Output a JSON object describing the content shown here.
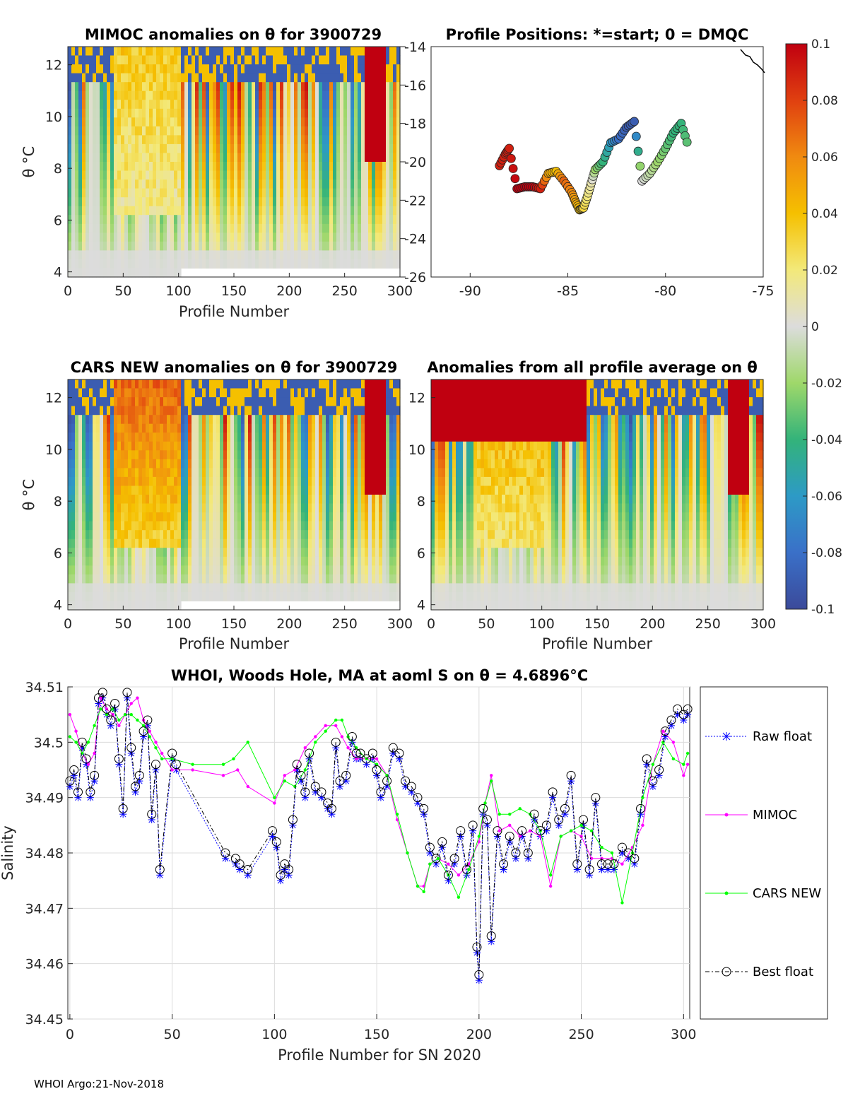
{
  "footer": "WHOI Argo:21-Nov-2018",
  "panels": {
    "mimoc": {
      "title": "MIMOC anomalies on θ  for 3900729",
      "xlabel": "Profile Number",
      "ylabel": "θ °C",
      "xticks": [
        "0",
        "50",
        "100",
        "150",
        "200",
        "250",
        "300"
      ],
      "yticks": [
        "4",
        "6",
        "8",
        "10",
        "12"
      ],
      "right_yticks": [
        "-14",
        "-16",
        "-18",
        "-20",
        "-22",
        "-24",
        "-26"
      ]
    },
    "positions": {
      "title": "Profile Positions: *=start; 0 = DMQC",
      "xticks": [
        "-90",
        "-85",
        "-80",
        "-75"
      ]
    },
    "cars": {
      "title": "CARS NEW anomalies on θ for 3900729",
      "xlabel": "Profile Number",
      "ylabel": "θ °C",
      "xticks": [
        "0",
        "50",
        "100",
        "150",
        "200",
        "250",
        "300"
      ],
      "yticks": [
        "4",
        "6",
        "8",
        "10",
        "12"
      ]
    },
    "avg": {
      "title": "Anomalies from all profile average on θ",
      "xlabel": "Profile Number",
      "xticks": [
        "0",
        "50",
        "100",
        "150",
        "200",
        "250",
        "300"
      ],
      "yticks": [
        "4",
        "6",
        "8",
        "10",
        "12"
      ]
    },
    "colorbar": {
      "ticks": [
        "0.1",
        "0.08",
        "0.06",
        "0.04",
        "0.02",
        "0",
        "-0.02",
        "-0.04",
        "-0.06",
        "-0.08",
        "-0.1"
      ]
    }
  },
  "chart_data": [
    {
      "type": "heatmap",
      "title": "MIMOC anomalies on θ  for 3900729",
      "xlabel": "Profile Number",
      "ylabel": "θ °C",
      "xlim": [
        0,
        300
      ],
      "ylim": [
        3.8,
        12.7
      ],
      "clim": [
        -0.1,
        0.1
      ]
    },
    {
      "type": "scatter",
      "title": "Profile Positions: *=start; 0 = DMQC",
      "xlim": [
        -92,
        -75
      ],
      "ylim": [
        -26,
        -14
      ],
      "x": [
        -88.5,
        -88.2,
        -88.0,
        -87.6,
        -87.2,
        -86.8,
        -86.4,
        -86.0,
        -85.6,
        -85.2,
        -84.8,
        -84.6,
        -84.4,
        -84.2,
        -84.0,
        -83.8,
        -83.6,
        -83.2,
        -82.8,
        -82.4,
        -82.0,
        -81.6,
        -81.2,
        -80.8,
        -80.4,
        -80.0,
        -79.6,
        -79.2,
        -78.8
      ],
      "y": [
        -20.2,
        -19.6,
        -19.3,
        -21.4,
        -21.3,
        -21.3,
        -21.4,
        -20.6,
        -20.5,
        -21.0,
        -21.6,
        -22.1,
        -22.5,
        -22.4,
        -21.8,
        -21.1,
        -20.4,
        -20.0,
        -19.0,
        -18.8,
        -18.2,
        -17.9,
        -21.0,
        -20.6,
        -20.0,
        -19.3,
        -18.5,
        -18.0,
        -19.3
      ],
      "c": [
        0.09,
        0.09,
        0.09,
        0.1,
        0.1,
        0.1,
        0.09,
        0.05,
        0.04,
        0.07,
        0.06,
        0.05,
        0.04,
        0.03,
        0.02,
        0.01,
        -0.02,
        -0.04,
        -0.06,
        -0.08,
        -0.09,
        -0.09,
        0.0,
        -0.01,
        -0.02,
        -0.03,
        -0.04,
        -0.04,
        -0.03
      ]
    },
    {
      "type": "heatmap",
      "title": "CARS NEW anomalies on θ for 3900729",
      "xlabel": "Profile Number",
      "ylabel": "θ °C",
      "xlim": [
        0,
        300
      ],
      "ylim": [
        3.8,
        12.7
      ],
      "clim": [
        -0.1,
        0.1
      ]
    },
    {
      "type": "heatmap",
      "title": "Anomalies from all profile average on θ",
      "xlabel": "Profile Number",
      "xlim": [
        0,
        300
      ],
      "ylim": [
        3.8,
        12.7
      ],
      "clim": [
        -0.1,
        0.1
      ]
    },
    {
      "type": "line",
      "title": "WHOI, Woods Hole, MA at aoml S on θ = 4.6896°C",
      "xlabel": "Profile Number for SN 2020",
      "ylabel": "Salinity",
      "xlim": [
        -1,
        303
      ],
      "ylim": [
        34.45,
        34.51
      ],
      "xticks": [
        "0",
        "50",
        "100",
        "150",
        "200",
        "250",
        "300"
      ],
      "yticks": [
        "34.45",
        "34.46",
        "34.47",
        "34.48",
        "34.49",
        "34.5",
        "34.51"
      ],
      "legend": [
        "Raw float",
        "MIMOC",
        "CARS NEW",
        "Best float"
      ],
      "series": [
        {
          "name": "Raw float",
          "color": "#0000ff",
          "x": [
            0,
            2,
            4,
            6,
            8,
            10,
            12,
            14,
            16,
            18,
            20,
            22,
            24,
            26,
            28,
            30,
            32,
            34,
            36,
            38,
            40,
            42,
            44,
            50,
            52,
            76,
            81,
            83,
            87,
            99,
            101,
            103,
            105,
            107,
            109,
            111,
            113,
            115,
            117,
            120,
            123,
            126,
            128,
            130,
            132,
            135,
            138,
            140,
            142,
            145,
            148,
            150,
            152,
            155,
            158,
            161,
            164,
            167,
            170,
            173,
            176,
            179,
            182,
            185,
            188,
            191,
            194,
            197,
            199,
            200,
            202,
            204,
            206,
            209,
            212,
            215,
            218,
            221,
            224,
            227,
            230,
            233,
            236,
            239,
            242,
            245,
            248,
            251,
            254,
            257,
            260,
            263,
            266,
            270,
            273,
            276,
            279,
            282,
            285,
            288,
            291,
            294,
            297,
            300,
            302
          ],
          "y": [
            34.492,
            34.494,
            34.49,
            34.499,
            34.496,
            34.49,
            34.493,
            34.507,
            34.508,
            34.505,
            34.503,
            34.506,
            34.496,
            34.487,
            34.508,
            34.498,
            34.491,
            34.493,
            34.501,
            34.503,
            34.486,
            34.495,
            34.476,
            34.497,
            34.495,
            34.479,
            34.478,
            34.477,
            34.476,
            34.483,
            34.481,
            34.475,
            34.477,
            34.476,
            34.485,
            34.495,
            34.493,
            34.49,
            34.497,
            34.491,
            34.49,
            34.488,
            34.487,
            34.499,
            34.492,
            34.493,
            34.5,
            34.497,
            34.497,
            34.496,
            34.497,
            34.494,
            34.49,
            34.492,
            34.498,
            34.497,
            34.492,
            34.491,
            34.489,
            34.487,
            34.48,
            34.478,
            34.481,
            34.475,
            34.478,
            34.483,
            34.476,
            34.484,
            34.462,
            34.457,
            34.487,
            34.485,
            34.464,
            34.483,
            34.477,
            34.482,
            34.479,
            34.483,
            34.479,
            34.486,
            34.483,
            34.484,
            34.49,
            34.485,
            34.487,
            34.493,
            34.477,
            34.485,
            34.476,
            34.489,
            34.477,
            34.477,
            34.477,
            34.48,
            34.479,
            34.478,
            34.487,
            34.496,
            34.492,
            34.494,
            34.501,
            34.503,
            34.505,
            34.504,
            34.505
          ]
        },
        {
          "name": "MIMOC",
          "color": "#ff00ff",
          "x": [
            0,
            3,
            6,
            9,
            12,
            15,
            18,
            21,
            24,
            27,
            30,
            33,
            36,
            39,
            42,
            45,
            50,
            60,
            75,
            82,
            87,
            100,
            105,
            110,
            115,
            120,
            125,
            130,
            133,
            136,
            140,
            145,
            150,
            155,
            160,
            165,
            170,
            173,
            176,
            180,
            185,
            190,
            195,
            200,
            203,
            206,
            210,
            215,
            220,
            225,
            230,
            235,
            240,
            245,
            250,
            255,
            260,
            265,
            270,
            275,
            280,
            285,
            290,
            295,
            300,
            302
          ],
          "y": [
            34.505,
            34.502,
            34.498,
            34.496,
            34.498,
            34.508,
            34.506,
            34.505,
            34.503,
            34.505,
            34.507,
            34.508,
            34.504,
            34.502,
            34.5,
            34.498,
            34.495,
            34.495,
            34.494,
            34.495,
            34.492,
            34.489,
            34.494,
            34.495,
            34.499,
            34.501,
            34.503,
            34.503,
            34.501,
            34.499,
            34.497,
            34.497,
            34.497,
            34.494,
            34.486,
            34.48,
            34.474,
            34.474,
            34.478,
            34.479,
            34.478,
            34.476,
            34.478,
            34.482,
            34.489,
            34.494,
            34.484,
            34.485,
            34.483,
            34.484,
            34.483,
            34.474,
            34.483,
            34.484,
            34.483,
            34.479,
            34.479,
            34.479,
            34.478,
            34.481,
            34.485,
            34.496,
            34.502,
            34.5,
            34.494,
            34.496
          ]
        },
        {
          "name": "CARS NEW",
          "color": "#00ff00",
          "x": [
            0,
            3,
            6,
            9,
            12,
            15,
            18,
            21,
            24,
            27,
            30,
            33,
            36,
            39,
            42,
            45,
            50,
            60,
            75,
            80,
            87,
            100,
            105,
            110,
            115,
            120,
            125,
            130,
            133,
            136,
            140,
            145,
            150,
            155,
            160,
            165,
            170,
            173,
            176,
            180,
            185,
            190,
            195,
            200,
            203,
            206,
            210,
            215,
            220,
            225,
            230,
            235,
            240,
            245,
            250,
            255,
            260,
            265,
            270,
            275,
            280,
            285,
            290,
            295,
            300,
            302
          ],
          "y": [
            34.501,
            34.5,
            34.498,
            34.5,
            34.503,
            34.506,
            34.505,
            34.506,
            34.504,
            34.505,
            34.505,
            34.504,
            34.503,
            34.501,
            34.499,
            34.497,
            34.497,
            34.496,
            34.496,
            34.497,
            34.5,
            34.49,
            34.493,
            34.492,
            34.495,
            34.5,
            34.502,
            34.504,
            34.504,
            34.501,
            34.499,
            34.497,
            34.496,
            34.494,
            34.487,
            34.48,
            34.474,
            34.473,
            34.478,
            34.479,
            34.476,
            34.472,
            34.477,
            34.483,
            34.489,
            34.493,
            34.487,
            34.487,
            34.488,
            34.487,
            34.484,
            34.476,
            34.483,
            34.484,
            34.485,
            34.484,
            34.481,
            34.48,
            34.471,
            34.48,
            34.49,
            34.496,
            34.5,
            34.497,
            34.496,
            34.498
          ]
        },
        {
          "name": "Best float",
          "color": "#000000",
          "x": [
            0,
            2,
            4,
            6,
            8,
            10,
            12,
            14,
            16,
            18,
            20,
            22,
            24,
            26,
            28,
            30,
            32,
            34,
            36,
            38,
            40,
            42,
            44,
            50,
            52,
            76,
            81,
            83,
            87,
            99,
            101,
            103,
            105,
            107,
            109,
            111,
            113,
            115,
            117,
            120,
            123,
            126,
            128,
            130,
            132,
            135,
            138,
            140,
            142,
            145,
            148,
            150,
            152,
            155,
            158,
            161,
            164,
            167,
            170,
            173,
            176,
            179,
            182,
            185,
            188,
            191,
            194,
            197,
            199,
            200,
            202,
            204,
            206,
            209,
            212,
            215,
            218,
            221,
            224,
            227,
            230,
            233,
            236,
            239,
            242,
            245,
            248,
            251,
            254,
            257,
            260,
            263,
            266,
            270,
            273,
            276,
            279,
            282,
            285,
            288,
            291,
            294,
            297,
            300,
            302
          ],
          "y": [
            34.493,
            34.495,
            34.491,
            34.5,
            34.497,
            34.491,
            34.494,
            34.508,
            34.509,
            34.506,
            34.504,
            34.507,
            34.497,
            34.488,
            34.509,
            34.499,
            34.492,
            34.494,
            34.502,
            34.504,
            34.487,
            34.496,
            34.477,
            34.498,
            34.496,
            34.48,
            34.479,
            34.478,
            34.477,
            34.484,
            34.482,
            34.476,
            34.478,
            34.477,
            34.486,
            34.496,
            34.494,
            34.491,
            34.498,
            34.492,
            34.491,
            34.489,
            34.488,
            34.5,
            34.493,
            34.494,
            34.501,
            34.498,
            34.498,
            34.497,
            34.498,
            34.495,
            34.491,
            34.493,
            34.499,
            34.498,
            34.493,
            34.492,
            34.49,
            34.488,
            34.481,
            34.479,
            34.482,
            34.476,
            34.479,
            34.484,
            34.477,
            34.485,
            34.463,
            34.458,
            34.488,
            34.486,
            34.465,
            34.484,
            34.478,
            34.483,
            34.48,
            34.484,
            34.48,
            34.487,
            34.484,
            34.485,
            34.491,
            34.486,
            34.488,
            34.494,
            34.478,
            34.486,
            34.477,
            34.49,
            34.478,
            34.478,
            34.478,
            34.481,
            34.48,
            34.479,
            34.488,
            34.497,
            34.493,
            34.495,
            34.502,
            34.504,
            34.506,
            34.505,
            34.506
          ]
        }
      ]
    }
  ]
}
